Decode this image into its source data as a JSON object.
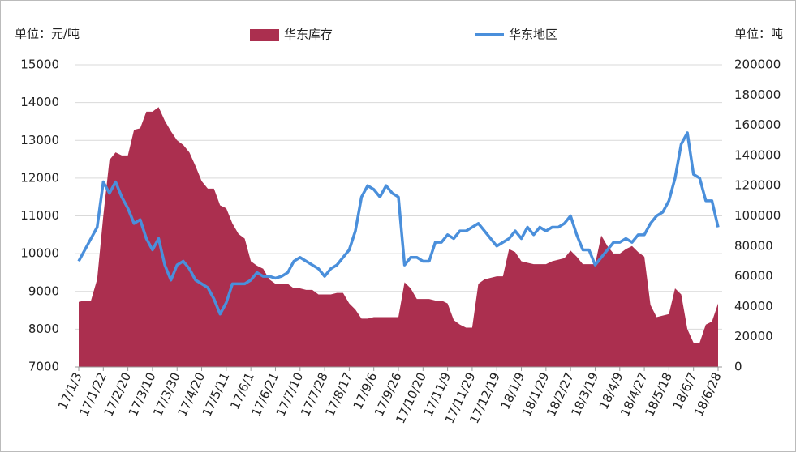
{
  "chart_data": {
    "type": "area_line",
    "y_label": "单位：元/吨",
    "y2_label": "单位：吨",
    "categories": [
      "17/1/3",
      null,
      null,
      null,
      "17/1/22",
      null,
      null,
      null,
      "17/2/20",
      null,
      null,
      null,
      "17/3/10",
      null,
      null,
      null,
      "17/3/30",
      null,
      null,
      null,
      "17/4/20",
      null,
      null,
      null,
      "17/5/11",
      null,
      null,
      null,
      "17/6/1",
      null,
      null,
      null,
      "17/6/21",
      null,
      null,
      null,
      "17/7/10",
      null,
      null,
      null,
      "17/7/28",
      null,
      null,
      null,
      "17/8/17",
      null,
      null,
      null,
      "17/9/6",
      null,
      null,
      null,
      "17/9/26",
      null,
      null,
      null,
      "17/10/20",
      null,
      null,
      null,
      "17/11/9",
      null,
      null,
      null,
      "17/11/29",
      null,
      null,
      null,
      "17/12/19",
      null,
      null,
      null,
      "18/1/9",
      null,
      null,
      null,
      "18/1/29",
      null,
      null,
      null,
      "18/2/27",
      null,
      null,
      null,
      "18/3/19",
      null,
      null,
      null,
      "18/4/9",
      null,
      null,
      null,
      "18/4/27",
      null,
      null,
      null,
      "18/5/18",
      null,
      null,
      null,
      "18/6/7",
      null,
      null,
      null,
      "18/6/28"
    ],
    "series": [
      {
        "name": "华东库存",
        "color": "#ab2f4f",
        "axis": "y2",
        "kind": "area",
        "values": [
          43000,
          44000,
          44000,
          58000,
          100000,
          137000,
          142000,
          140000,
          140000,
          157000,
          158000,
          169000,
          169000,
          172000,
          163000,
          156000,
          150000,
          147000,
          142000,
          133000,
          123000,
          118000,
          118000,
          107000,
          105000,
          95000,
          88000,
          85000,
          70000,
          67000,
          65000,
          58000,
          55000,
          55000,
          55000,
          52000,
          52000,
          51000,
          51000,
          48000,
          48000,
          48000,
          49000,
          49000,
          42000,
          38000,
          32000,
          32000,
          33000,
          33000,
          33000,
          33000,
          33000,
          56000,
          52000,
          45000,
          45000,
          45000,
          44000,
          44000,
          42000,
          31000,
          28000,
          26000,
          26000,
          55000,
          58000,
          59000,
          60000,
          60000,
          78000,
          76000,
          70000,
          69000,
          68000,
          68000,
          68000,
          70000,
          71000,
          72000,
          77000,
          73000,
          68000,
          68000,
          68000,
          87000,
          80000,
          75000,
          75000,
          78000,
          80000,
          76000,
          73000,
          41000,
          33000,
          34000,
          35000,
          52000,
          48000,
          25000,
          16000,
          16000,
          28000,
          30000,
          42000
        ]
      },
      {
        "name": "华东地区",
        "color": "#4a8fdb",
        "axis": "y",
        "kind": "line",
        "values": [
          9800,
          10100,
          10400,
          10700,
          11900,
          11600,
          11900,
          11500,
          11200,
          10800,
          10900,
          10400,
          10100,
          10400,
          9700,
          9300,
          9700,
          9800,
          9600,
          9300,
          9200,
          9100,
          8800,
          8400,
          8700,
          9200,
          9200,
          9200,
          9300,
          9500,
          9400,
          9400,
          9350,
          9400,
          9500,
          9800,
          9900,
          9800,
          9700,
          9600,
          9400,
          9600,
          9700,
          9900,
          10100,
          10600,
          11500,
          11800,
          11700,
          11500,
          11800,
          11600,
          11500,
          9700,
          9900,
          9900,
          9800,
          9800,
          10300,
          10300,
          10500,
          10400,
          10600,
          10600,
          10700,
          10800,
          10600,
          10400,
          10200,
          10300,
          10400,
          10600,
          10400,
          10700,
          10500,
          10700,
          10600,
          10700,
          10700,
          10800,
          11000,
          10500,
          10100,
          10100,
          9700,
          9900,
          10100,
          10300,
          10300,
          10400,
          10300,
          10500,
          10500,
          10800,
          11000,
          11100,
          11400,
          12000,
          12900,
          13200,
          12100,
          12000,
          11400,
          11400,
          10700
        ]
      }
    ],
    "ylim": [
      7000,
      15000
    ],
    "yticks": [
      7000,
      8000,
      9000,
      10000,
      11000,
      12000,
      13000,
      14000,
      15000
    ],
    "y2lim": [
      0,
      200000
    ],
    "y2ticks": [
      0,
      20000,
      40000,
      60000,
      80000,
      100000,
      120000,
      140000,
      160000,
      180000,
      200000
    ],
    "grid": true
  }
}
